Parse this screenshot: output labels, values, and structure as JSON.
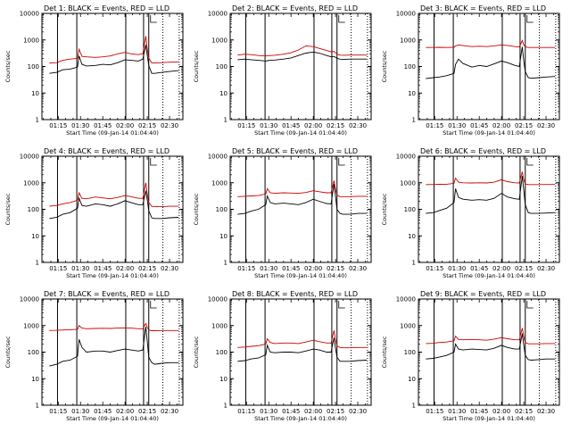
{
  "colors": {
    "events": "#000000",
    "lld": "#cc0000",
    "axis": "#000000",
    "background": "#ffffff"
  },
  "chart_data": [
    {
      "type": "line",
      "title": "Det 1: BLACK = Events, RED = LLD",
      "xlabel": "Start Time (09-Jan-14 01:04:40)",
      "ylabel": "Counts/sec",
      "x_ticks": [
        "01:15",
        "01:30",
        "01:45",
        "02:00",
        "02:15",
        "02:30"
      ],
      "y_ticks": [
        "1",
        "10",
        "100",
        "1000",
        "10000"
      ],
      "ylim": [
        1,
        10000
      ],
      "y_scale": "log",
      "grid": false,
      "x": [
        "01:09",
        "01:14",
        "01:18",
        "01:23",
        "01:28",
        "01:29",
        "01:31",
        "01:34",
        "01:40",
        "01:45",
        "01:50",
        "01:55",
        "02:00",
        "02:04",
        "02:09",
        "02:12",
        "02:14",
        "02:15",
        "02:16",
        "02:18",
        "02:20",
        "02:25",
        "02:30",
        "02:36"
      ],
      "series": [
        {
          "name": "Events",
          "values": [
            55,
            60,
            75,
            80,
            95,
            250,
            120,
            105,
            110,
            120,
            115,
            140,
            180,
            170,
            160,
            190,
            650,
            260,
            110,
            55,
            55,
            60,
            65,
            70
          ]
        },
        {
          "name": "LLD",
          "values": [
            135,
            140,
            170,
            190,
            200,
            450,
            240,
            230,
            220,
            230,
            250,
            300,
            340,
            300,
            280,
            300,
            1400,
            450,
            210,
            135,
            135,
            140,
            145,
            150
          ]
        }
      ]
    },
    {
      "type": "line",
      "title": "Det 2: BLACK = Events, RED = LLD",
      "xlabel": "Start Time (09-Jan-14 01:04:40)",
      "ylabel": "Counts/sec",
      "x_ticks": [
        "01:15",
        "01:30",
        "01:45",
        "02:00",
        "02:15",
        "02:30"
      ],
      "y_ticks": [
        "1",
        "10",
        "100",
        "1000",
        "10000"
      ],
      "ylim": [
        1,
        10000
      ],
      "y_scale": "log",
      "grid": false,
      "x": [
        "01:09",
        "01:14",
        "01:18",
        "01:23",
        "01:28",
        "01:29",
        "01:31",
        "01:34",
        "01:40",
        "01:45",
        "01:50",
        "01:55",
        "02:00",
        "02:04",
        "02:09",
        "02:12",
        "02:14",
        "02:15",
        "02:16",
        "02:18",
        "02:20",
        "02:25",
        "02:30",
        "02:36"
      ],
      "series": [
        {
          "name": "Events",
          "values": [
            180,
            190,
            180,
            170,
            160,
            165,
            170,
            175,
            190,
            210,
            260,
            320,
            350,
            320,
            260,
            230,
            240,
            220,
            200,
            190,
            185,
            190,
            190,
            190
          ]
        },
        {
          "name": "LLD",
          "values": [
            270,
            290,
            280,
            260,
            250,
            255,
            260,
            265,
            290,
            330,
            420,
            600,
            560,
            480,
            400,
            360,
            370,
            330,
            290,
            270,
            265,
            270,
            270,
            270
          ]
        }
      ]
    },
    {
      "type": "line",
      "title": "Det 3: BLACK = Events, RED = LLD",
      "xlabel": "Start Time (09-Jan-14 01:04:40)",
      "ylabel": "Counts/sec",
      "x_ticks": [
        "01:15",
        "01:30",
        "01:45",
        "02:00",
        "02:15",
        "02:30"
      ],
      "y_ticks": [
        "1",
        "10",
        "100",
        "1000",
        "10000"
      ],
      "ylim": [
        1,
        10000
      ],
      "y_scale": "log",
      "grid": false,
      "x": [
        "01:09",
        "01:14",
        "01:18",
        "01:23",
        "01:28",
        "01:29",
        "01:31",
        "01:34",
        "01:40",
        "01:45",
        "01:50",
        "01:55",
        "02:00",
        "02:04",
        "02:09",
        "02:12",
        "02:14",
        "02:15",
        "02:16",
        "02:18",
        "02:20",
        "02:25",
        "02:30",
        "02:36"
      ],
      "series": [
        {
          "name": "Events",
          "values": [
            35,
            38,
            40,
            45,
            55,
            120,
            190,
            130,
            95,
            110,
            100,
            125,
            160,
            140,
            110,
            100,
            550,
            160,
            65,
            38,
            36,
            38,
            40,
            42
          ]
        },
        {
          "name": "LLD",
          "values": [
            520,
            520,
            530,
            520,
            530,
            600,
            640,
            610,
            560,
            580,
            560,
            600,
            650,
            620,
            560,
            540,
            950,
            650,
            550,
            520,
            520,
            520,
            520,
            520
          ]
        }
      ]
    },
    {
      "type": "line",
      "title": "Det 4: BLACK = Events, RED = LLD",
      "xlabel": "Start Time (09-Jan-14 01:04:40)",
      "ylabel": "Counts/sec",
      "x_ticks": [
        "01:15",
        "01:30",
        "01:45",
        "02:00",
        "02:15",
        "02:30"
      ],
      "y_ticks": [
        "1",
        "10",
        "100",
        "1000",
        "10000"
      ],
      "ylim": [
        1,
        10000
      ],
      "y_scale": "log",
      "grid": false,
      "x": [
        "01:09",
        "01:14",
        "01:18",
        "01:23",
        "01:28",
        "01:29",
        "01:31",
        "01:34",
        "01:40",
        "01:45",
        "01:50",
        "01:55",
        "02:00",
        "02:04",
        "02:09",
        "02:12",
        "02:14",
        "02:15",
        "02:16",
        "02:18",
        "02:20",
        "02:25",
        "02:30",
        "02:36"
      ],
      "series": [
        {
          "name": "Events",
          "values": [
            45,
            50,
            65,
            75,
            110,
            260,
            140,
            130,
            160,
            150,
            130,
            160,
            210,
            180,
            150,
            150,
            500,
            220,
            90,
            48,
            45,
            45,
            48,
            50
          ]
        },
        {
          "name": "LLD",
          "values": [
            130,
            140,
            160,
            180,
            220,
            420,
            260,
            250,
            290,
            270,
            250,
            280,
            330,
            300,
            260,
            260,
            1000,
            380,
            180,
            130,
            125,
            125,
            130,
            130
          ]
        }
      ]
    },
    {
      "type": "line",
      "title": "Det 5: BLACK = Events, RED = LLD",
      "xlabel": "Start Time (09-Jan-14 01:04:40)",
      "ylabel": "Counts/sec",
      "x_ticks": [
        "01:15",
        "01:30",
        "01:45",
        "02:00",
        "02:15",
        "02:30"
      ],
      "y_ticks": [
        "1",
        "10",
        "100",
        "1000",
        "10000"
      ],
      "ylim": [
        1,
        10000
      ],
      "y_scale": "log",
      "grid": false,
      "x": [
        "01:09",
        "01:14",
        "01:18",
        "01:23",
        "01:28",
        "01:29",
        "01:31",
        "01:34",
        "01:40",
        "01:45",
        "01:50",
        "01:55",
        "02:00",
        "02:04",
        "02:09",
        "02:12",
        "02:14",
        "02:15",
        "02:16",
        "02:18",
        "02:20",
        "02:25",
        "02:30",
        "02:36"
      ],
      "series": [
        {
          "name": "Events",
          "values": [
            65,
            70,
            85,
            100,
            150,
            320,
            180,
            160,
            170,
            160,
            150,
            180,
            240,
            200,
            165,
            160,
            900,
            300,
            100,
            70,
            65,
            65,
            70,
            70
          ]
        },
        {
          "name": "LLD",
          "values": [
            300,
            310,
            320,
            330,
            380,
            600,
            420,
            400,
            420,
            410,
            400,
            430,
            500,
            460,
            420,
            420,
            1200,
            560,
            340,
            300,
            300,
            300,
            310,
            310
          ]
        }
      ]
    },
    {
      "type": "line",
      "title": "Det 6: BLACK = Events, RED = LLD",
      "xlabel": "Start Time (09-Jan-14 01:04:40)",
      "ylabel": "Counts/sec",
      "x_ticks": [
        "01:15",
        "01:30",
        "01:45",
        "02:00",
        "02:15",
        "02:30"
      ],
      "y_ticks": [
        "1",
        "10",
        "100",
        "1000",
        "10000"
      ],
      "ylim": [
        1,
        10000
      ],
      "y_scale": "log",
      "grid": false,
      "x": [
        "01:09",
        "01:14",
        "01:18",
        "01:23",
        "01:28",
        "01:29",
        "01:31",
        "01:34",
        "01:40",
        "01:45",
        "01:50",
        "01:55",
        "02:00",
        "02:04",
        "02:09",
        "02:12",
        "02:14",
        "02:15",
        "02:16",
        "02:18",
        "02:20",
        "02:25",
        "02:30",
        "02:36"
      ],
      "series": [
        {
          "name": "Events",
          "values": [
            70,
            75,
            90,
            110,
            180,
            600,
            280,
            240,
            220,
            230,
            220,
            260,
            400,
            290,
            250,
            240,
            1800,
            500,
            150,
            75,
            70,
            70,
            72,
            75
          ]
        },
        {
          "name": "LLD",
          "values": [
            850,
            860,
            870,
            880,
            950,
            1500,
            1050,
            1000,
            980,
            1000,
            980,
            1050,
            1300,
            1100,
            1000,
            980,
            2600,
            1300,
            900,
            850,
            850,
            850,
            860,
            860
          ]
        }
      ]
    },
    {
      "type": "line",
      "title": "Det 7: BLACK = Events, RED = LLD",
      "xlabel": "Start Time (09-Jan-14 01:04:40)",
      "ylabel": "Counts/sec",
      "x_ticks": [
        "01:15",
        "01:30",
        "01:45",
        "02:00",
        "02:15",
        "02:30"
      ],
      "y_ticks": [
        "1",
        "10",
        "100",
        "1000",
        "10000"
      ],
      "ylim": [
        1,
        10000
      ],
      "y_scale": "log",
      "grid": false,
      "x": [
        "01:09",
        "01:14",
        "01:18",
        "01:23",
        "01:28",
        "01:29",
        "01:31",
        "01:34",
        "01:40",
        "01:45",
        "01:50",
        "01:55",
        "02:00",
        "02:04",
        "02:09",
        "02:12",
        "02:14",
        "02:15",
        "02:16",
        "02:18",
        "02:20",
        "02:25",
        "02:30",
        "02:36"
      ],
      "series": [
        {
          "name": "Events",
          "values": [
            30,
            35,
            45,
            50,
            70,
            300,
            150,
            100,
            110,
            110,
            100,
            115,
            130,
            120,
            110,
            120,
            900,
            250,
            65,
            40,
            35,
            38,
            40,
            40
          ]
        },
        {
          "name": "LLD",
          "values": [
            650,
            660,
            680,
            700,
            720,
            1000,
            800,
            760,
            780,
            790,
            780,
            800,
            820,
            800,
            760,
            760,
            1200,
            850,
            680,
            640,
            640,
            650,
            650,
            650
          ]
        }
      ]
    },
    {
      "type": "line",
      "title": "Det 8: BLACK = Events, RED = LLD",
      "xlabel": "Start Time (09-Jan-14 01:04:40)",
      "ylabel": "Counts/sec",
      "x_ticks": [
        "01:15",
        "01:30",
        "01:45",
        "02:00",
        "02:15",
        "02:30"
      ],
      "y_ticks": [
        "1",
        "10",
        "100",
        "1000",
        "10000"
      ],
      "ylim": [
        1,
        10000
      ],
      "y_scale": "log",
      "grid": false,
      "x": [
        "01:09",
        "01:14",
        "01:18",
        "01:23",
        "01:28",
        "01:29",
        "01:31",
        "01:34",
        "01:40",
        "01:45",
        "01:50",
        "01:55",
        "02:00",
        "02:04",
        "02:09",
        "02:12",
        "02:14",
        "02:15",
        "02:16",
        "02:18",
        "02:20",
        "02:25",
        "02:30",
        "02:36"
      ],
      "series": [
        {
          "name": "Events",
          "values": [
            45,
            48,
            55,
            60,
            80,
            180,
            100,
            95,
            100,
            100,
            95,
            110,
            130,
            120,
            100,
            100,
            350,
            140,
            65,
            45,
            45,
            45,
            48,
            50
          ]
        },
        {
          "name": "LLD",
          "values": [
            150,
            155,
            165,
            175,
            200,
            320,
            230,
            210,
            220,
            220,
            210,
            240,
            280,
            250,
            220,
            220,
            650,
            300,
            170,
            150,
            145,
            145,
            150,
            150
          ]
        }
      ]
    },
    {
      "type": "line",
      "title": "Det 9: BLACK = Events, RED = LLD",
      "xlabel": "Start Time (09-Jan-14 01:04:40)",
      "ylabel": "Counts/sec",
      "x_ticks": [
        "01:15",
        "01:30",
        "01:45",
        "02:00",
        "02:15",
        "02:30"
      ],
      "y_ticks": [
        "1",
        "10",
        "100",
        "1000",
        "10000"
      ],
      "ylim": [
        1,
        10000
      ],
      "y_scale": "log",
      "grid": false,
      "x": [
        "01:09",
        "01:14",
        "01:18",
        "01:23",
        "01:28",
        "01:29",
        "01:31",
        "01:34",
        "01:40",
        "01:45",
        "01:50",
        "01:55",
        "02:00",
        "02:04",
        "02:09",
        "02:12",
        "02:14",
        "02:15",
        "02:16",
        "02:18",
        "02:20",
        "02:25",
        "02:30",
        "02:36"
      ],
      "series": [
        {
          "name": "Events",
          "values": [
            55,
            58,
            65,
            75,
            100,
            200,
            130,
            120,
            130,
            125,
            120,
            140,
            180,
            150,
            130,
            130,
            500,
            180,
            75,
            52,
            50,
            52,
            55,
            55
          ]
        },
        {
          "name": "LLD",
          "values": [
            210,
            215,
            230,
            240,
            270,
            400,
            300,
            290,
            300,
            290,
            280,
            310,
            350,
            320,
            290,
            290,
            800,
            380,
            230,
            205,
            205,
            205,
            210,
            210
          ]
        }
      ]
    }
  ]
}
